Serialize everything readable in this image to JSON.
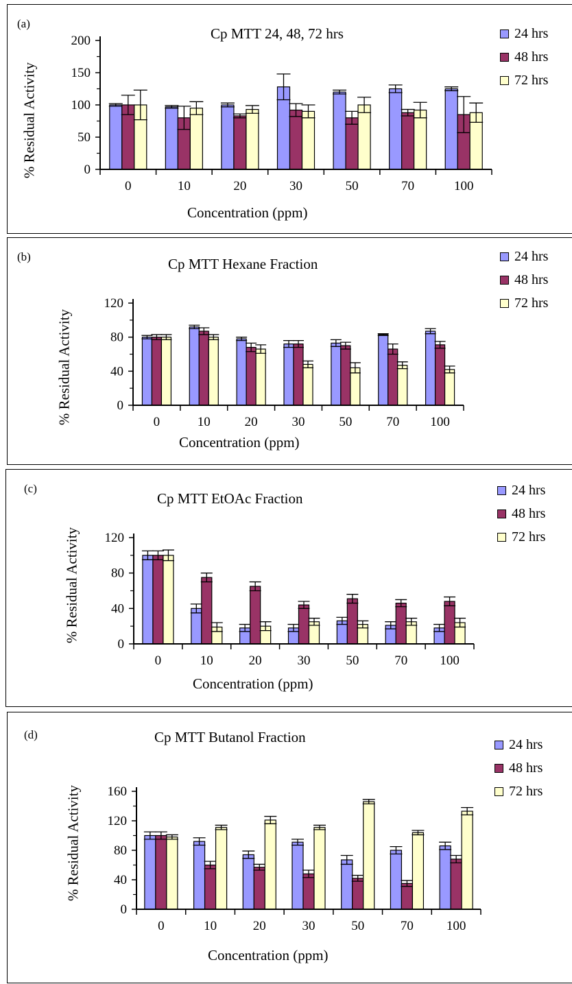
{
  "colors": {
    "s24": "#9999ff",
    "s48": "#993366",
    "s72": "#ffffcc",
    "axis": "#000000"
  },
  "chart_data": [
    {
      "type": "bar",
      "panel_label": "(a)",
      "title": "Cp MTT 24, 48, 72 hrs",
      "xlabel": "Concentration (ppm)",
      "ylabel": "% Residual Activity",
      "categories": [
        "0",
        "10",
        "20",
        "30",
        "50",
        "70",
        "100"
      ],
      "ylim": [
        0,
        200
      ],
      "yticks": [
        "0",
        "50",
        "100",
        "150",
        "200"
      ],
      "series": [
        {
          "name": "24 hrs",
          "values": [
            100,
            97,
            100,
            128,
            120,
            125,
            125
          ],
          "errors": [
            2,
            2,
            3,
            20,
            3,
            6,
            3
          ]
        },
        {
          "name": "48 hrs",
          "values": [
            100,
            80,
            83,
            92,
            80,
            88,
            85
          ],
          "errors": [
            15,
            18,
            3,
            10,
            10,
            5,
            28
          ]
        },
        {
          "name": "72 hrs",
          "values": [
            100,
            95,
            93,
            90,
            100,
            92,
            88
          ],
          "errors": [
            23,
            10,
            6,
            10,
            12,
            12,
            15
          ]
        }
      ]
    },
    {
      "type": "bar",
      "panel_label": "(b)",
      "title": "Cp MTT Hexane Fraction",
      "xlabel": "Concentration (ppm)",
      "ylabel": "% Residual Activity",
      "categories": [
        "0",
        "10",
        "20",
        "30",
        "50",
        "70",
        "100"
      ],
      "ylim": [
        0,
        120
      ],
      "yticks": [
        "0",
        "40",
        "80",
        "120"
      ],
      "series": [
        {
          "name": "24 hrs",
          "values": [
            80,
            92,
            78,
            72,
            73,
            83,
            87
          ],
          "errors": [
            2,
            2,
            2,
            4,
            4,
            1,
            3
          ]
        },
        {
          "name": "48 hrs",
          "values": [
            80,
            87,
            68,
            72,
            70,
            66,
            71
          ],
          "errors": [
            3,
            4,
            5,
            4,
            4,
            6,
            4
          ]
        },
        {
          "name": "72 hrs",
          "values": [
            80,
            80,
            66,
            48,
            44,
            47,
            42
          ],
          "errors": [
            3,
            3,
            5,
            4,
            6,
            4,
            4
          ]
        }
      ]
    },
    {
      "type": "bar",
      "panel_label": "(c)",
      "title": "Cp MTT EtOAc Fraction",
      "xlabel": "Concentration (ppm)",
      "ylabel": "% Residual Activity",
      "categories": [
        "0",
        "10",
        "20",
        "30",
        "50",
        "70",
        "100"
      ],
      "ylim": [
        0,
        120
      ],
      "yticks": [
        "0",
        "40",
        "80",
        "120"
      ],
      "series": [
        {
          "name": "24 hrs",
          "values": [
            100,
            40,
            18,
            18,
            26,
            21,
            18
          ],
          "errors": [
            5,
            5,
            4,
            4,
            4,
            4,
            4
          ]
        },
        {
          "name": "48 hrs",
          "values": [
            100,
            75,
            65,
            44,
            51,
            46,
            48
          ],
          "errors": [
            5,
            5,
            5,
            4,
            5,
            4,
            5
          ]
        },
        {
          "name": "72 hrs",
          "values": [
            100,
            19,
            20,
            25,
            22,
            25,
            24
          ],
          "errors": [
            6,
            5,
            5,
            4,
            4,
            4,
            5
          ]
        }
      ]
    },
    {
      "type": "bar",
      "panel_label": "(d)",
      "title": "Cp MTT Butanol Fraction",
      "xlabel": "Concentration (ppm)",
      "ylabel": "% Residual Activity",
      "categories": [
        "0",
        "10",
        "20",
        "30",
        "50",
        "70",
        "100"
      ],
      "ylim": [
        0,
        160
      ],
      "yticks": [
        "0",
        "40",
        "80",
        "120",
        "160"
      ],
      "series": [
        {
          "name": "24 hrs",
          "values": [
            100,
            92,
            74,
            91,
            67,
            80,
            86
          ],
          "errors": [
            5,
            5,
            5,
            4,
            6,
            5,
            5
          ]
        },
        {
          "name": "48 hrs",
          "values": [
            100,
            60,
            57,
            48,
            42,
            35,
            68
          ],
          "errors": [
            5,
            5,
            4,
            5,
            4,
            4,
            5
          ]
        },
        {
          "name": "72 hrs",
          "values": [
            98,
            111,
            121,
            111,
            146,
            104,
            133
          ],
          "errors": [
            3,
            3,
            5,
            3,
            3,
            3,
            5
          ]
        }
      ]
    }
  ]
}
